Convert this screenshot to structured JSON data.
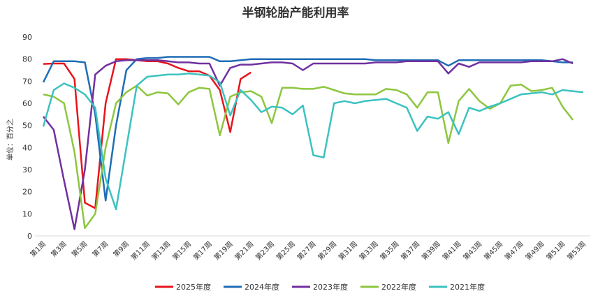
{
  "chart_data": {
    "type": "line",
    "title": "半钢轮胎产能利用率",
    "y_label": "单位：百分之",
    "categories": [
      "第1周",
      null,
      "第3周",
      null,
      "第5周",
      null,
      "第7周",
      null,
      "第9周",
      null,
      "第11周",
      null,
      "第13周",
      null,
      "第15周",
      null,
      "第17周",
      null,
      "第19周",
      null,
      "第21周",
      null,
      "第23周",
      null,
      "第25周",
      null,
      "第27周",
      null,
      "第29周",
      null,
      "第31周",
      null,
      "第33周",
      null,
      "第35周",
      null,
      "第37周",
      null,
      "第39周",
      null,
      "第41周",
      null,
      "第43周",
      null,
      "第45周",
      null,
      "第47周",
      null,
      "第49周",
      null,
      "第51周",
      null,
      "第53周"
    ],
    "ylim": [
      0,
      90
    ],
    "yticks": [
      0,
      10,
      20,
      30,
      40,
      50,
      60,
      70,
      80,
      90
    ],
    "legend": "bottom",
    "series": [
      {
        "name": "2025年度",
        "color": "#e8141b",
        "values": [
          77.8,
          78,
          78,
          71,
          15,
          12.5,
          60,
          80,
          80,
          79.5,
          79,
          79,
          78,
          76,
          74.5,
          74.5,
          72.5,
          66,
          47,
          71,
          74,
          null,
          null,
          null,
          null,
          null,
          null,
          null,
          null,
          null,
          null,
          null,
          null,
          null,
          null,
          null,
          null,
          null,
          null,
          null,
          null,
          null,
          null,
          null,
          null,
          null,
          null,
          null,
          null,
          null,
          null,
          null,
          null
        ]
      },
      {
        "name": "2024年度",
        "color": "#1f6db5",
        "values": [
          69.5,
          79,
          79,
          79,
          78.5,
          55,
          16,
          50,
          75,
          80,
          80.5,
          80.5,
          81,
          81,
          81,
          81,
          81,
          79,
          79,
          79.5,
          80,
          80,
          80,
          80,
          80,
          80,
          80,
          80,
          80,
          80,
          80,
          80,
          79.5,
          79.5,
          79.5,
          79.5,
          79.5,
          79.5,
          79.5,
          77,
          79.5,
          79.5,
          79.5,
          79.5,
          79.5,
          79.5,
          79.5,
          79.5,
          79.5,
          79,
          78.5,
          78.5,
          null
        ]
      },
      {
        "name": "2023年度",
        "color": "#7030a0",
        "values": [
          54,
          48,
          25,
          3,
          30,
          73,
          77,
          79,
          79.5,
          79.5,
          79.5,
          79.5,
          79,
          78.5,
          78.5,
          78,
          78,
          68,
          76,
          77.5,
          77.5,
          78,
          78.5,
          78.5,
          78,
          75,
          78,
          78,
          78,
          78,
          78,
          78,
          78.5,
          78.5,
          78.5,
          79,
          79,
          79,
          79,
          73.5,
          78,
          76.5,
          78.5,
          78.5,
          78.5,
          78.5,
          78.5,
          79,
          79,
          79,
          80,
          78,
          null
        ]
      },
      {
        "name": "2022年度",
        "color": "#8dc63f",
        "values": [
          64,
          63,
          60,
          38,
          3.5,
          10,
          40,
          60,
          65,
          68,
          63.5,
          65,
          64.5,
          59.5,
          65,
          67,
          66.5,
          45.5,
          63,
          65,
          65.5,
          63,
          51,
          67,
          67,
          66.5,
          66.5,
          67.5,
          66,
          64.5,
          64,
          64,
          64,
          66.5,
          66,
          64,
          58,
          65,
          65,
          42,
          61,
          66.5,
          61,
          57.5,
          60,
          68,
          68.5,
          65.5,
          66,
          67,
          58.5,
          52.5,
          null
        ]
      },
      {
        "name": "2021年度",
        "color": "#3cc2c0",
        "values": [
          49.5,
          66,
          69,
          67,
          64,
          58,
          26,
          12,
          40,
          68,
          72,
          72.5,
          73,
          73,
          73.5,
          73,
          72.5,
          69.5,
          54.5,
          66,
          61.5,
          56,
          58.5,
          58,
          55,
          59,
          36.5,
          35.5,
          60,
          61,
          60,
          61,
          61.5,
          62,
          60,
          58,
          47.5,
          54,
          53,
          56,
          46,
          58,
          56.5,
          58.5,
          60,
          62,
          64,
          64.5,
          65,
          64,
          66,
          65.5,
          65
        ]
      }
    ]
  }
}
